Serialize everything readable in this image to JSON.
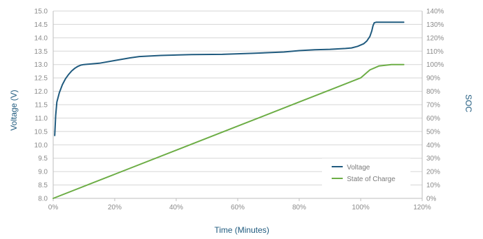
{
  "chart_data": {
    "type": "line",
    "title": "",
    "xlabel": "Time (Minutes)",
    "ylabel_left": "Voltage (V)",
    "ylabel_right": "SOC",
    "x_ticks": [
      "0%",
      "20%",
      "40%",
      "60%",
      "80%",
      "100%",
      "120%"
    ],
    "xlim": [
      0,
      120
    ],
    "y_left_ticks": [
      "8.0",
      "8.5",
      "9.0",
      "9.5",
      "10.0",
      "10.5",
      "11.0",
      "11.5",
      "12.0",
      "12.5",
      "13.0",
      "13.5",
      "14.0",
      "14.5",
      "15.0"
    ],
    "y_left_lim": [
      8.0,
      15.0
    ],
    "y_right_ticks": [
      "0%",
      "10%",
      "20%",
      "30%",
      "40%",
      "50%",
      "60%",
      "70%",
      "80%",
      "90%",
      "100%",
      "110%",
      "120%",
      "130%",
      "140%"
    ],
    "y_right_lim": [
      0,
      140
    ],
    "grid": "horizontal",
    "legend_position": "bottom-right",
    "colors": {
      "voltage": "#1f5a7e",
      "soc": "#6cad45",
      "title": "#1f5a7e",
      "grid": "#d5d5d5"
    },
    "series": [
      {
        "name": "Voltage",
        "axis": "left",
        "x": [
          0.5,
          0.8,
          1.2,
          2,
          3,
          4,
          5,
          6,
          7,
          8,
          9,
          10,
          15,
          20,
          25,
          28,
          35,
          45,
          55,
          65,
          75,
          80,
          85,
          90,
          95,
          97,
          99,
          101,
          102,
          103,
          103.6,
          104,
          104.4,
          105,
          107,
          110,
          114
        ],
        "y": [
          10.35,
          11.1,
          11.6,
          11.95,
          12.25,
          12.47,
          12.63,
          12.76,
          12.86,
          12.93,
          12.98,
          13.0,
          13.05,
          13.15,
          13.25,
          13.3,
          13.34,
          13.37,
          13.38,
          13.42,
          13.47,
          13.52,
          13.55,
          13.57,
          13.6,
          13.62,
          13.68,
          13.78,
          13.88,
          14.05,
          14.25,
          14.45,
          14.56,
          14.58,
          14.58,
          14.58,
          14.58
        ]
      },
      {
        "name": "State of Charge",
        "axis": "right",
        "x": [
          0,
          20,
          40,
          60,
          80,
          100,
          103,
          106,
          110,
          114
        ],
        "y": [
          0,
          18,
          36,
          54,
          72,
          90,
          96,
          99,
          100,
          100
        ]
      }
    ]
  }
}
